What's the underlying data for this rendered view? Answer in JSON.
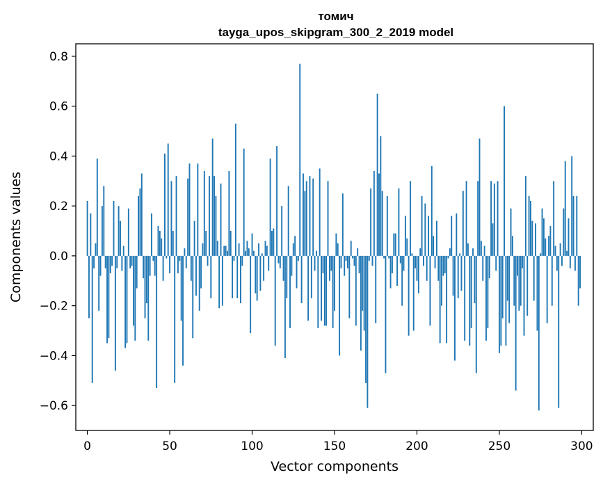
{
  "chart_data": {
    "type": "bar",
    "title": [
      "томич",
      "tayga_upos_skipgram_300_2_2019 model"
    ],
    "xlabel": "Vector components",
    "ylabel": "Components values",
    "xlim": [
      -7,
      307
    ],
    "ylim": [
      -0.7,
      0.85
    ],
    "x_ticks": [
      0,
      50,
      100,
      150,
      200,
      250,
      300
    ],
    "x_tick_labels": [
      "0",
      "50",
      "100",
      "150",
      "200",
      "250",
      "300"
    ],
    "y_ticks": [
      -0.6,
      -0.4,
      -0.2,
      0.0,
      0.2,
      0.4,
      0.6,
      0.8
    ],
    "y_tick_labels": [
      "−0.6",
      "−0.4",
      "−0.2",
      "0.0",
      "0.2",
      "0.4",
      "0.6",
      "0.8"
    ],
    "bar_color": "#1f77b4",
    "grid": false,
    "legend": false,
    "x": [
      0,
      1,
      2,
      3,
      4,
      5,
      6,
      7,
      8,
      9,
      10,
      11,
      12,
      13,
      14,
      15,
      16,
      17,
      18,
      19,
      20,
      21,
      22,
      23,
      24,
      25,
      26,
      27,
      28,
      29,
      30,
      31,
      32,
      33,
      34,
      35,
      36,
      37,
      38,
      39,
      40,
      41,
      42,
      43,
      44,
      45,
      46,
      47,
      48,
      49,
      50,
      51,
      52,
      53,
      54,
      55,
      56,
      57,
      58,
      59,
      60,
      61,
      62,
      63,
      64,
      65,
      66,
      67,
      68,
      69,
      70,
      71,
      72,
      73,
      74,
      75,
      76,
      77,
      78,
      79,
      80,
      81,
      82,
      83,
      84,
      85,
      86,
      87,
      88,
      89,
      90,
      91,
      92,
      93,
      94,
      95,
      96,
      97,
      98,
      99,
      100,
      101,
      102,
      103,
      104,
      105,
      106,
      107,
      108,
      109,
      110,
      111,
      112,
      113,
      114,
      115,
      116,
      117,
      118,
      119,
      120,
      121,
      122,
      123,
      124,
      125,
      126,
      127,
      128,
      129,
      130,
      131,
      132,
      133,
      134,
      135,
      136,
      137,
      138,
      139,
      140,
      141,
      142,
      143,
      144,
      145,
      146,
      147,
      148,
      149,
      150,
      151,
      152,
      153,
      154,
      155,
      156,
      157,
      158,
      159,
      160,
      161,
      162,
      163,
      164,
      165,
      166,
      167,
      168,
      169,
      170,
      171,
      172,
      173,
      174,
      175,
      176,
      177,
      178,
      179,
      180,
      181,
      182,
      183,
      184,
      185,
      186,
      187,
      188,
      189,
      190,
      191,
      192,
      193,
      194,
      195,
      196,
      197,
      198,
      199,
      200,
      201,
      202,
      203,
      204,
      205,
      206,
      207,
      208,
      209,
      210,
      211,
      212,
      213,
      214,
      215,
      216,
      217,
      218,
      219,
      220,
      221,
      222,
      223,
      224,
      225,
      226,
      227,
      228,
      229,
      230,
      231,
      232,
      233,
      234,
      235,
      236,
      237,
      238,
      239,
      240,
      241,
      242,
      243,
      244,
      245,
      246,
      247,
      248,
      249,
      250,
      251,
      252,
      253,
      254,
      255,
      256,
      257,
      258,
      259,
      260,
      261,
      262,
      263,
      264,
      265,
      266,
      267,
      268,
      269,
      270,
      271,
      272,
      273,
      274,
      275,
      276,
      277,
      278,
      279,
      280,
      281,
      282,
      283,
      284,
      285,
      286,
      287,
      288,
      289,
      290,
      291,
      292,
      293,
      294,
      295,
      296,
      297,
      298,
      299
    ],
    "values": [
      0.22,
      -0.25,
      0.17,
      -0.51,
      -0.05,
      0.05,
      0.39,
      -0.22,
      -0.08,
      0.2,
      0.28,
      -0.05,
      -0.35,
      -0.33,
      -0.07,
      -0.04,
      0.22,
      -0.46,
      -0.05,
      0.2,
      0.14,
      -0.06,
      0.04,
      -0.37,
      -0.35,
      0.19,
      -0.05,
      -0.04,
      -0.28,
      -0.34,
      -0.13,
      0.24,
      0.27,
      0.33,
      -0.09,
      -0.25,
      -0.19,
      -0.34,
      -0.08,
      0.17,
      -0.02,
      -0.08,
      -0.53,
      0.12,
      0.1,
      0.07,
      -0.1,
      0.41,
      -0.01,
      0.45,
      -0.07,
      0.3,
      0.1,
      -0.51,
      0.32,
      -0.07,
      -0.02,
      -0.26,
      -0.44,
      0.03,
      -0.05,
      0.31,
      0.37,
      -0.1,
      -0.33,
      0.14,
      -0.16,
      0.37,
      -0.22,
      -0.13,
      0.05,
      0.34,
      0.1,
      -0.04,
      0.32,
      -0.17,
      0.47,
      0.32,
      0.24,
      0.06,
      -0.21,
      0.29,
      -0.2,
      0.04,
      0.04,
      0.02,
      0.34,
      0.1,
      -0.17,
      -0.02,
      0.53,
      -0.17,
      0.05,
      -0.19,
      -0.04,
      0.43,
      0.02,
      0.06,
      0.03,
      -0.31,
      0.09,
      0.02,
      -0.15,
      -0.18,
      0.05,
      -0.14,
      0.01,
      -0.1,
      0.06,
      0.04,
      -0.06,
      0.39,
      0.1,
      0.11,
      -0.36,
      0.44,
      -0.03,
      -0.05,
      0.2,
      -0.1,
      -0.41,
      -0.17,
      0.28,
      -0.29,
      -0.08,
      0.05,
      0.08,
      -0.13,
      -0.02,
      0.77,
      -0.19,
      0.33,
      0.26,
      0.3,
      -0.26,
      0.32,
      -0.17,
      0.31,
      -0.06,
      0.02,
      -0.29,
      0.35,
      -0.26,
      -0.07,
      -0.28,
      -0.28,
      0.3,
      -0.1,
      -0.06,
      -0.29,
      -0.22,
      0.09,
      0.05,
      -0.4,
      -0.05,
      0.25,
      -0.08,
      -0.02,
      -0.05,
      -0.25,
      0.06,
      -0.01,
      -0.04,
      -0.28,
      0.03,
      -0.07,
      -0.38,
      -0.22,
      -0.3,
      -0.51,
      -0.61,
      -0.02,
      0.27,
      -0.04,
      0.34,
      -0.27,
      0.65,
      0.33,
      0.48,
      0.26,
      -0.01,
      -0.47,
      0.24,
      -0.01,
      -0.13,
      -0.07,
      0.09,
      0.09,
      -0.12,
      0.27,
      -0.03,
      -0.2,
      -0.06,
      0.16,
      0.07,
      -0.32,
      0.3,
      0.01,
      -0.3,
      -0.05,
      -0.1,
      -0.15,
      0.03,
      0.24,
      -0.04,
      0.21,
      -0.1,
      0.16,
      -0.28,
      0.36,
      0.08,
      -0.05,
      0.14,
      -0.1,
      -0.35,
      -0.2,
      -0.08,
      -0.07,
      -0.35,
      -0.01,
      0.03,
      0.16,
      -0.16,
      -0.42,
      0.17,
      -0.17,
      0.01,
      -0.14,
      0.26,
      -0.34,
      0.3,
      0.05,
      -0.36,
      -0.29,
      0.03,
      -0.19,
      -0.47,
      0.3,
      0.47,
      0.06,
      -0.1,
      0.04,
      -0.34,
      -0.29,
      -0.09,
      0.3,
      0.13,
      0.29,
      -0.06,
      0.3,
      -0.39,
      -0.36,
      -0.25,
      0.6,
      -0.36,
      -0.18,
      -0.27,
      0.19,
      0.08,
      -0.2,
      -0.54,
      -0.08,
      -0.22,
      -0.2,
      -0.05,
      -0.32,
      0.32,
      -0.24,
      0.24,
      0.22,
      0.14,
      -0.18,
      0.13,
      -0.3,
      -0.62,
      0.01,
      0.19,
      0.15,
      0.07,
      -0.27,
      0.08,
      0.12,
      -0.2,
      0.3,
      0.04,
      -0.06,
      -0.61,
      0.05,
      -0.04,
      0.19,
      0.38,
      0.02,
      0.15,
      -0.05,
      0.4,
      0.24,
      -0.06,
      0.24,
      -0.2,
      -0.13
    ]
  }
}
